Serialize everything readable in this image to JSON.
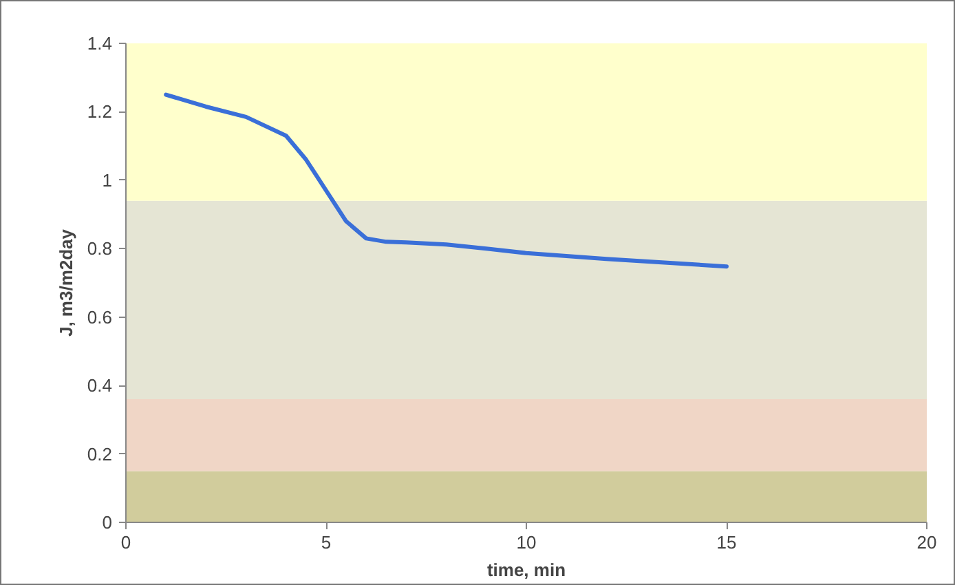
{
  "chart_data": {
    "type": "line",
    "xlabel": "time, min",
    "ylabel": "J, m3/m2day",
    "x": [
      1,
      2,
      3,
      4,
      4.5,
      5,
      5.5,
      6,
      6.5,
      7,
      8,
      9,
      10,
      12,
      15
    ],
    "series": [
      {
        "color": "#3a6fd8",
        "values": [
          1.25,
          1.215,
          1.185,
          1.13,
          1.06,
          0.97,
          0.88,
          0.83,
          0.82,
          0.818,
          0.812,
          0.8,
          0.787,
          0.77,
          0.748
        ]
      }
    ],
    "xlim": [
      0,
      20
    ],
    "xticks": [
      0,
      5,
      10,
      15,
      20
    ],
    "ylim": [
      0,
      1.4
    ],
    "yticks": [
      0,
      0.2,
      0.4,
      0.6,
      0.8,
      1,
      1.2,
      1.4
    ],
    "bands": [
      {
        "axis": "y",
        "from": 0,
        "to": 0.15,
        "color": "#d1cc9c"
      },
      {
        "axis": "y",
        "from": 0.15,
        "to": 0.36,
        "color": "#f0d6c6"
      },
      {
        "axis": "y",
        "from": 0.36,
        "to": 0.94,
        "color": "#e5e5d4"
      },
      {
        "axis": "y",
        "from": 0.94,
        "to": 1.4,
        "color": "#ffffcc"
      }
    ],
    "grid": false,
    "marker": "none",
    "line_style": "solid"
  }
}
